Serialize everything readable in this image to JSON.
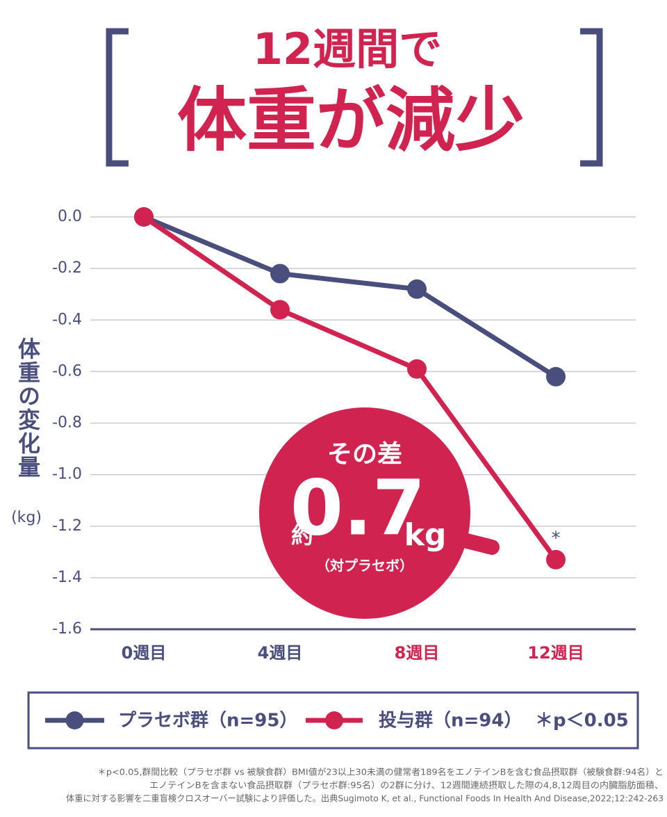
{
  "chart_data": {
    "type": "line",
    "title": "12週間で",
    "subtitle": "体重が減少",
    "y_label": "体重の変化量",
    "y_unit": "(kg)",
    "categories": [
      "0週目",
      "4週目",
      "8週目",
      "12週目"
    ],
    "category_colors": [
      "#4a4e7c",
      "#4a4e7c",
      "#d0234f",
      "#d0234f"
    ],
    "series": [
      {
        "name": "プラセボ群（n=95）",
        "color": "#4a4e7c",
        "values": [
          0,
          -0.22,
          -0.28,
          -0.62
        ]
      },
      {
        "name": "投与群（n=94）",
        "color": "#d0234f",
        "values": [
          0,
          -0.36,
          -0.59,
          -1.33
        ]
      }
    ],
    "ylim": [
      -1.6,
      0
    ],
    "yticks": [
      {
        "value": 0,
        "label": "0.0"
      },
      -0.2,
      -0.4,
      -0.6,
      -0.8,
      {
        "value": -1,
        "label": "-1.0"
      },
      -1.2,
      -1.4,
      -1.6
    ],
    "grid": true,
    "significance_marker": "*",
    "legend_note": "＊p＜0.05",
    "callout": {
      "line1": "その差",
      "prefix": "約",
      "value": "0.7",
      "unit": "kg",
      "note": "（対プラセボ）"
    },
    "footnotes": [
      "＊p<0.05,群間比較（プラセボ群 vs 被験食群）BMI値が23以上30未満の健常者189名をエノテインBを含む食品摂取群（被験食群:94名）と",
      "エノテインBを含まない食品摂取群（プラセボ群:95名）の2群に分け、12週間連続摂取した際の4,8,12周目の内臓脂肪面積、",
      "体重に対する影響を二重盲検クロスオーバー試験により評価した。出典Sugimoto K, et al., Functional Foods In Health And Disease,2022;12:242-263"
    ]
  }
}
